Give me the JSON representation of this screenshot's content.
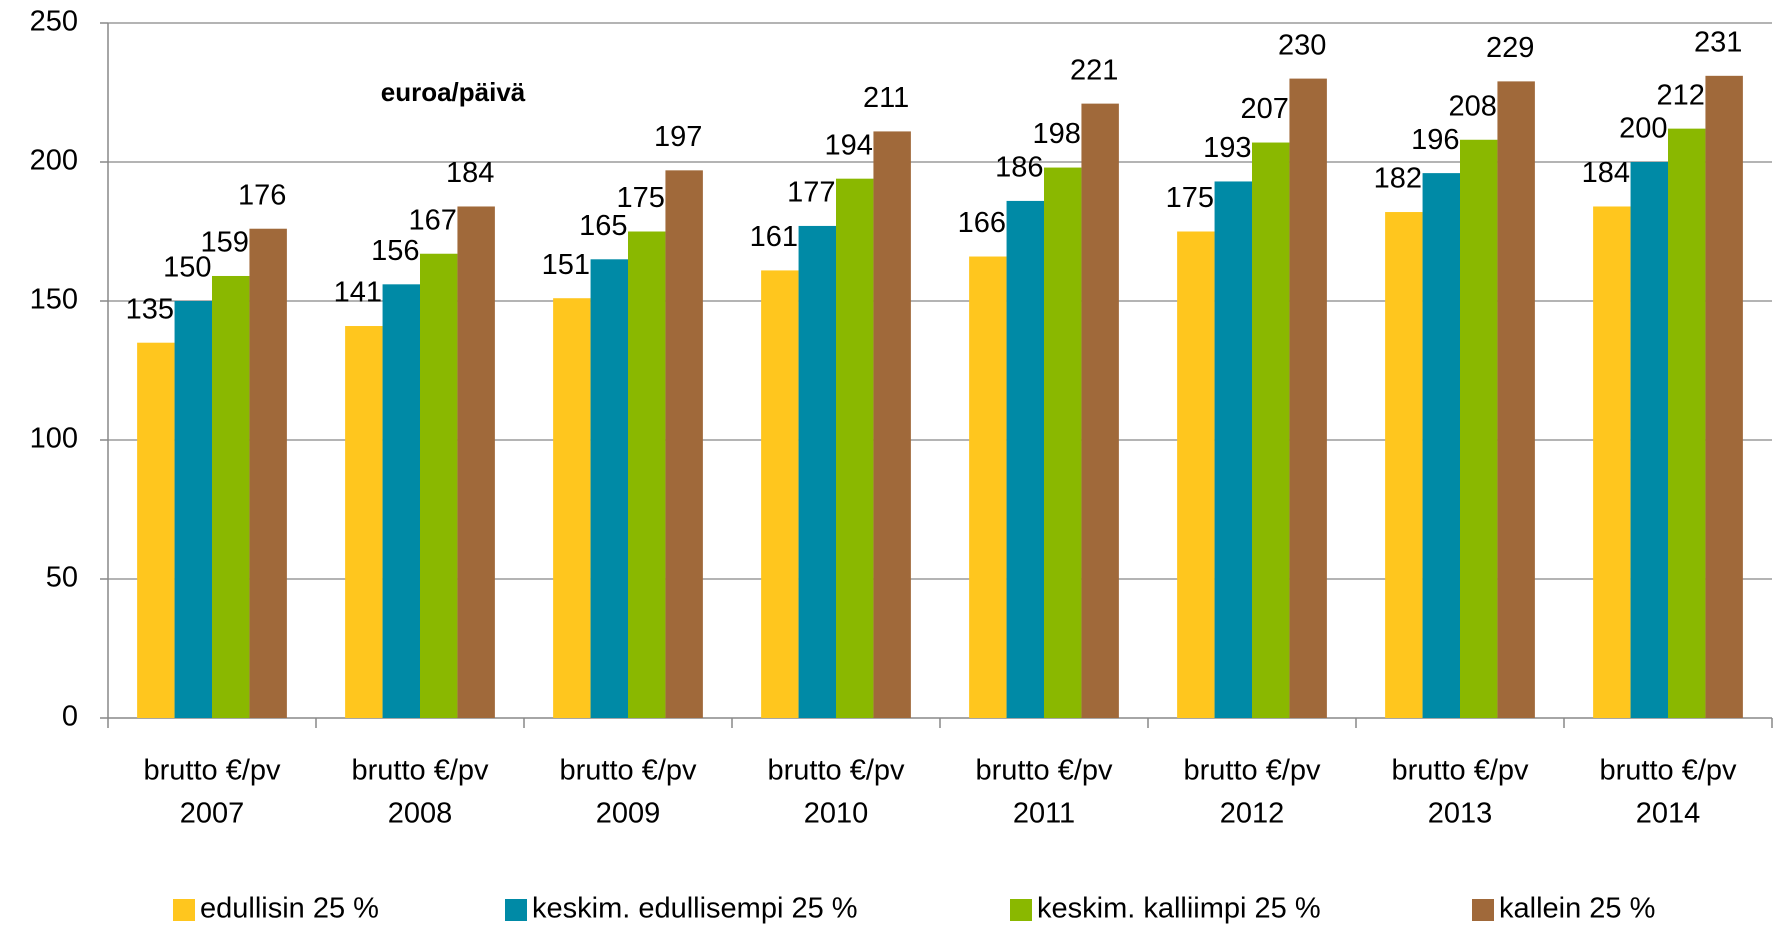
{
  "chart_data": {
    "type": "bar",
    "annotation": "euroa/päivä",
    "categories": [
      [
        "brutto €/pv",
        "2007"
      ],
      [
        "brutto €/pv",
        "2008"
      ],
      [
        "brutto €/pv",
        "2009"
      ],
      [
        "brutto €/pv",
        "2010"
      ],
      [
        "brutto €/pv",
        "2011"
      ],
      [
        "brutto €/pv",
        "2012"
      ],
      [
        "brutto €/pv",
        "2013"
      ],
      [
        "brutto €/pv",
        "2014"
      ]
    ],
    "series": [
      {
        "name": "edullisin 25 %",
        "color": "#ffc61e",
        "values": [
          135,
          141,
          151,
          161,
          166,
          175,
          182,
          184
        ]
      },
      {
        "name": "keskim. edullisempi 25 %",
        "color": "#008aa6",
        "values": [
          150,
          156,
          165,
          177,
          186,
          193,
          196,
          200
        ]
      },
      {
        "name": "keskim. kalliimpi 25 %",
        "color": "#8ab800",
        "values": [
          159,
          167,
          175,
          194,
          198,
          207,
          208,
          212
        ]
      },
      {
        "name": "kallein 25 %",
        "color": "#a0693a",
        "values": [
          176,
          184,
          197,
          211,
          221,
          230,
          229,
          231
        ]
      }
    ],
    "ylim": [
      0,
      250
    ],
    "yticks": [
      0,
      50,
      100,
      150,
      200,
      250
    ],
    "grid": true,
    "legend": "bottom"
  }
}
